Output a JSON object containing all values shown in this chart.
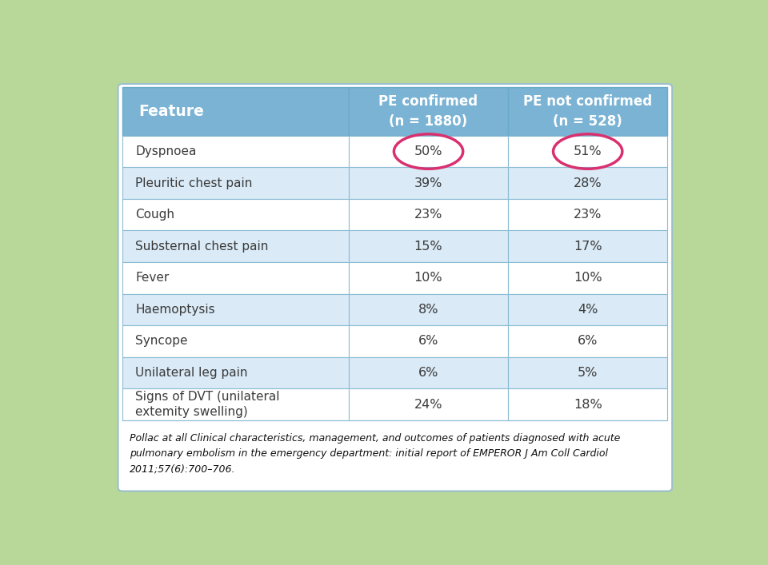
{
  "features": [
    "Dyspnoea",
    "Pleuritic chest pain",
    "Cough",
    "Substernal chest pain",
    "Fever",
    "Haemoptysis",
    "Syncope",
    "Unilateral leg pain",
    "Signs of DVT (unilateral\nextemity swelling)"
  ],
  "pe_confirmed": [
    "50%",
    "39%",
    "23%",
    "15%",
    "10%",
    "8%",
    "6%",
    "6%",
    "24%"
  ],
  "pe_not_confirmed": [
    "51%",
    "28%",
    "23%",
    "17%",
    "10%",
    "4%",
    "6%",
    "5%",
    "18%"
  ],
  "col1_header": "Feature",
  "col2_header": "PE confirmed\n(n = 1880)",
  "col3_header": "PE not confirmed\n(n = 528)",
  "caption": "Pollac at all Clinical characteristics, management, and outcomes of patients diagnosed with acute\npulmonary embolism in the emergency department: initial report of EMPEROR J Am Coll Cardiol\n2011;57(6):700–706.",
  "header_bg": "#7ab3d4",
  "row_bg_blue": "#daeaf6",
  "row_bg_white": "#ffffff",
  "outer_bg": "#b8d89a",
  "header_text_color": "#ffffff",
  "row_text_color": "#3a3a3a",
  "circle_color": "#d93070",
  "border_color": "#8bbcd4",
  "caption_text_color": "#111111"
}
